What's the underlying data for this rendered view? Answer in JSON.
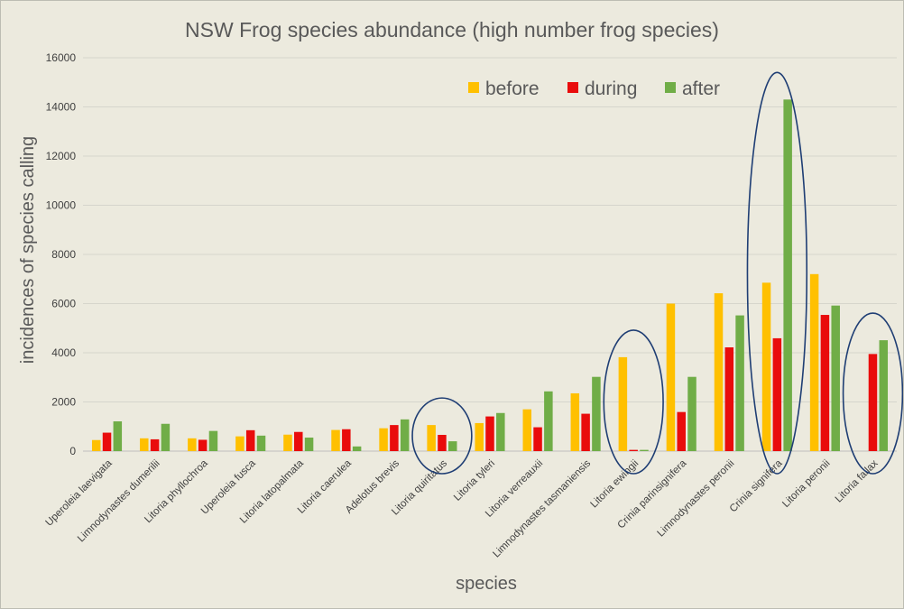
{
  "chart_data": {
    "type": "bar",
    "title": "NSW Frog species abundance (high number frog species)",
    "xlabel": "species",
    "ylabel": "incidences of species calling",
    "ylim": [
      0,
      16000
    ],
    "yticks": [
      "0",
      "2000",
      "4000",
      "6000",
      "8000",
      "10000",
      "12000",
      "14000",
      "16000"
    ],
    "grid": true,
    "legend_position": "top-right",
    "categories": [
      "Uperoleia laevigata",
      "Limnodynastes dumerilii",
      "Litoria phyllochroa",
      "Uperoleia fusca",
      "Litoria latopalmata",
      "Litoria caerulea",
      "Adelotus brevis",
      "Litoria quiritatus",
      "Litoria tyleri",
      "Litoria verreauxii",
      "Limnodynastes tasmaniensis",
      "Litoria ewingii",
      "Crinia parinsignifera",
      "Limnodynastes peronii",
      "Crinia signifera",
      "Litoria peronii",
      "Litoria fallax"
    ],
    "series": [
      {
        "name": "before",
        "color": "#ffc000",
        "values": [
          450,
          520,
          520,
          600,
          670,
          860,
          930,
          1060,
          1140,
          1700,
          2350,
          3820,
          6000,
          6420,
          6850,
          7200,
          0
        ]
      },
      {
        "name": "during",
        "color": "#e90c0c",
        "values": [
          750,
          480,
          460,
          850,
          780,
          890,
          1060,
          660,
          1410,
          970,
          1520,
          50,
          1590,
          4220,
          4590,
          5540,
          3950
        ]
      },
      {
        "name": "after",
        "color": "#70ad47",
        "values": [
          1210,
          1110,
          820,
          630,
          550,
          190,
          1290,
          400,
          1550,
          2430,
          3020,
          50,
          3020,
          5520,
          14300,
          5920,
          4510
        ]
      }
    ],
    "highlighted_categories": [
      "Litoria quiritatus",
      "Litoria ewingii",
      "Crinia signifera",
      "Litoria fallax"
    ],
    "highlight_color": "#1f3e74"
  }
}
